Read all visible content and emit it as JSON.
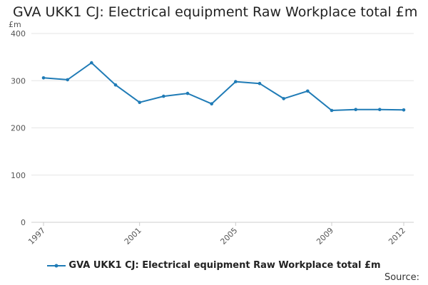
{
  "title": "GVA UKK1 CJ: Electrical equipment Raw Workplace total £m",
  "source_label": "Source:",
  "colors": {
    "series": "#1f7bb6",
    "grid": "#e6e6e6",
    "axis": "#cccccc",
    "text": "#555555"
  },
  "chart_data": {
    "type": "line",
    "title": "GVA UKK1 CJ: Electrical equipment Raw Workplace total £m",
    "ylabel": "£m",
    "xlabel": "",
    "ylim": [
      0,
      400
    ],
    "yticks": [
      0,
      100,
      200,
      300,
      400
    ],
    "xticks": [
      1997,
      2001,
      2005,
      2009,
      2012
    ],
    "xlim": [
      1997,
      2012
    ],
    "grid": true,
    "legend_position": "bottom",
    "series": [
      {
        "name": "GVA UKK1 CJ: Electrical equipment Raw Workplace total £m",
        "x": [
          1997,
          1998,
          1999,
          2000,
          2001,
          2002,
          2003,
          2004,
          2005,
          2006,
          2007,
          2008,
          2009,
          2010,
          2011,
          2012
        ],
        "values": [
          306,
          302,
          338,
          291,
          254,
          267,
          273,
          251,
          298,
          294,
          262,
          278,
          237,
          239,
          239,
          238
        ]
      }
    ]
  }
}
